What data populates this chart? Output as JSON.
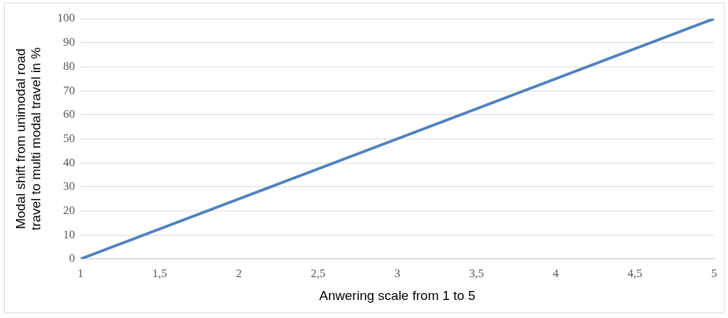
{
  "chart_data": {
    "type": "line",
    "xlabel": "Anwering scale from 1 to 5",
    "ylabel": "Modal shift from unimodal road travel to multi modal travel in %",
    "series": [
      {
        "color": "#4f81bd",
        "x": [
          1,
          5
        ],
        "values": [
          0,
          100
        ]
      }
    ],
    "xlim": [
      1,
      5
    ],
    "xticks": [
      1,
      {
        "value": 1.5,
        "label": "1,5"
      },
      2,
      {
        "value": 2.5,
        "label": "2,5"
      },
      3,
      {
        "value": 3.5,
        "label": "3,5"
      },
      4,
      {
        "value": 4.5,
        "label": "4,5"
      },
      5
    ],
    "ylim": [
      0,
      100
    ],
    "yticks": [
      0,
      10,
      20,
      30,
      40,
      50,
      60,
      70,
      80,
      90,
      100
    ],
    "grid": "y",
    "legend": false,
    "marker": "none",
    "line_style": "solid"
  }
}
